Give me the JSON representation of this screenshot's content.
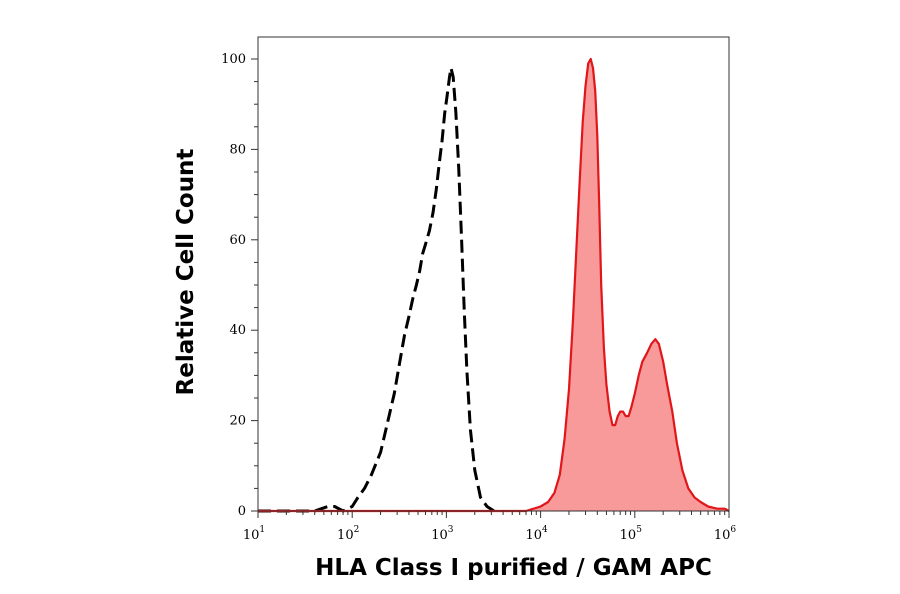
{
  "chart_data": {
    "type": "area",
    "xlabel": "HLA Class I purified / GAM APC",
    "ylabel": "Relative Cell Count",
    "xscale": "log",
    "xlim": [
      10,
      1000000
    ],
    "ylim": [
      0,
      100
    ],
    "x_ticks": [
      {
        "base": "10",
        "exp": "1"
      },
      {
        "base": "10",
        "exp": "2"
      },
      {
        "base": "10",
        "exp": "3"
      },
      {
        "base": "10",
        "exp": "4"
      },
      {
        "base": "10",
        "exp": "5"
      },
      {
        "base": "10",
        "exp": "6"
      }
    ],
    "y_ticks": [
      "0",
      "20",
      "40",
      "60",
      "80",
      "100"
    ],
    "series": [
      {
        "style": "dashed",
        "color": "#000000",
        "fill": "none",
        "points": [
          [
            10,
            0
          ],
          [
            40,
            0
          ],
          [
            55,
            1
          ],
          [
            65,
            1
          ],
          [
            80,
            0
          ],
          [
            100,
            1
          ],
          [
            115,
            3
          ],
          [
            135,
            5
          ],
          [
            160,
            8
          ],
          [
            200,
            13
          ],
          [
            240,
            20
          ],
          [
            280,
            26
          ],
          [
            320,
            33
          ],
          [
            360,
            39
          ],
          [
            400,
            43
          ],
          [
            440,
            47
          ],
          [
            480,
            50
          ],
          [
            520,
            53
          ],
          [
            560,
            57
          ],
          [
            600,
            59
          ],
          [
            660,
            62
          ],
          [
            720,
            66
          ],
          [
            780,
            71
          ],
          [
            840,
            77
          ],
          [
            900,
            82
          ],
          [
            960,
            88
          ],
          [
            1020,
            92
          ],
          [
            1080,
            96
          ],
          [
            1120,
            98
          ],
          [
            1180,
            96
          ],
          [
            1260,
            88
          ],
          [
            1350,
            76
          ],
          [
            1450,
            60
          ],
          [
            1550,
            44
          ],
          [
            1650,
            31
          ],
          [
            1800,
            18
          ],
          [
            2000,
            9
          ],
          [
            2300,
            3
          ],
          [
            2700,
            1
          ],
          [
            3200,
            0
          ]
        ]
      },
      {
        "style": "solid",
        "color": "#e0161b",
        "fill": "#f99a9a",
        "points": [
          [
            10,
            0
          ],
          [
            500,
            0
          ],
          [
            1000,
            0
          ],
          [
            3000,
            0
          ],
          [
            7000,
            0
          ],
          [
            10000,
            1
          ],
          [
            12000,
            2
          ],
          [
            14000,
            4
          ],
          [
            16000,
            8
          ],
          [
            18000,
            16
          ],
          [
            20000,
            27
          ],
          [
            22000,
            42
          ],
          [
            24000,
            58
          ],
          [
            26000,
            73
          ],
          [
            28000,
            86
          ],
          [
            30000,
            94
          ],
          [
            32000,
            99
          ],
          [
            34000,
            100
          ],
          [
            36000,
            98
          ],
          [
            38000,
            93
          ],
          [
            40000,
            83
          ],
          [
            42000,
            67
          ],
          [
            44000,
            50
          ],
          [
            47000,
            36
          ],
          [
            50000,
            28
          ],
          [
            54000,
            22
          ],
          [
            58000,
            19
          ],
          [
            62000,
            19
          ],
          [
            66000,
            21
          ],
          [
            70000,
            22
          ],
          [
            75000,
            22
          ],
          [
            80000,
            21
          ],
          [
            86000,
            21
          ],
          [
            92000,
            23
          ],
          [
            100000,
            26
          ],
          [
            110000,
            30
          ],
          [
            120000,
            33
          ],
          [
            135000,
            35
          ],
          [
            150000,
            37
          ],
          [
            165000,
            38
          ],
          [
            180000,
            37
          ],
          [
            200000,
            33
          ],
          [
            220000,
            28
          ],
          [
            250000,
            22
          ],
          [
            280000,
            15
          ],
          [
            320000,
            9
          ],
          [
            370000,
            5
          ],
          [
            430000,
            3
          ],
          [
            500000,
            2
          ],
          [
            600000,
            1
          ],
          [
            750000,
            0.5
          ],
          [
            900000,
            0.5
          ],
          [
            1000000,
            0
          ]
        ]
      }
    ]
  }
}
